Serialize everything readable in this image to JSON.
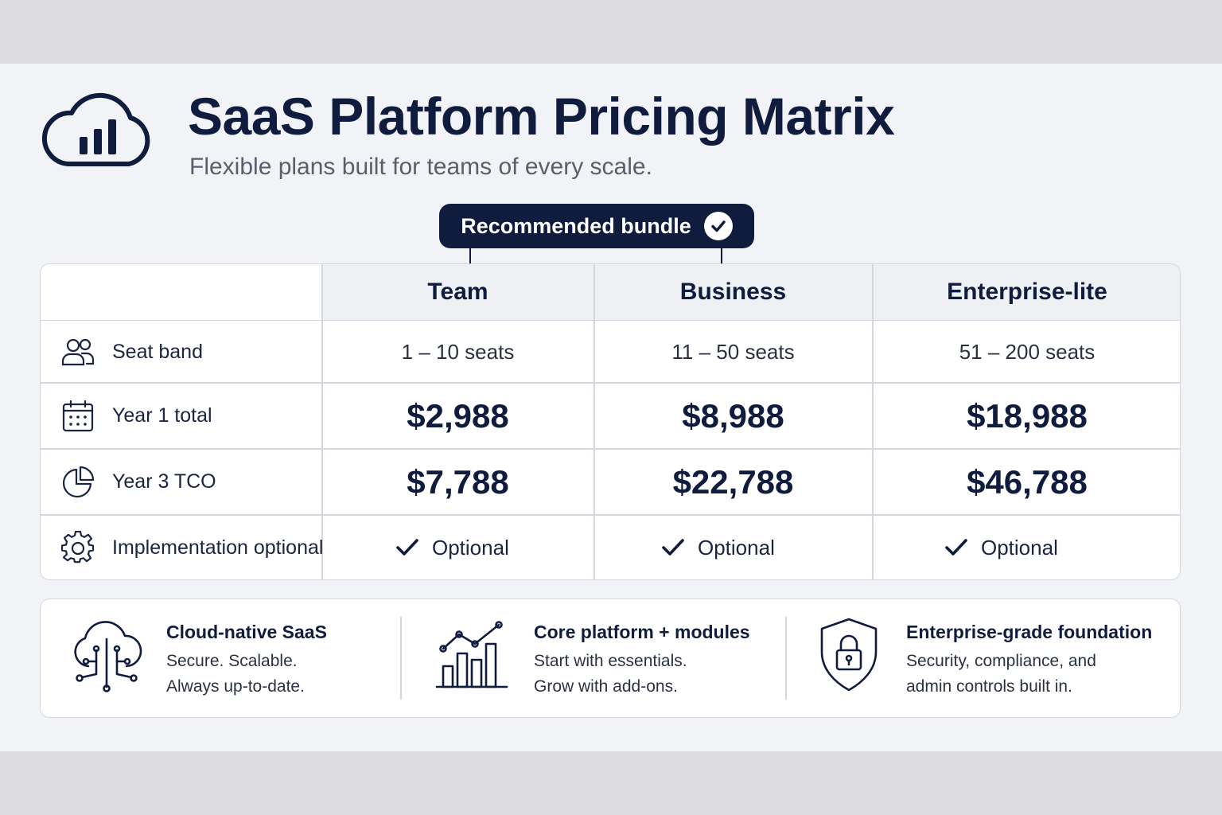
{
  "header": {
    "icon": "cloud-chart-icon",
    "title": "SaaS Platform Pricing Matrix",
    "subtitle": "Flexible plans built for teams of every scale."
  },
  "recommended": {
    "label": "Recommended bundle",
    "icon": "check-circle-icon"
  },
  "plans": [
    "Team",
    "Business",
    "Enterprise-lite"
  ],
  "rows": [
    {
      "label": "Seat band",
      "icon": "users-icon",
      "values": [
        "1 – 10 seats",
        "11 – 50 seats",
        "51 – 200 seats"
      ]
    },
    {
      "label": "Year 1 total",
      "icon": "calendar-icon",
      "values": [
        "$2,988",
        "$8,988",
        "$18,988"
      ]
    },
    {
      "label": "Year 3 TCO",
      "icon": "pie-chart-icon",
      "values": [
        "$7,788",
        "$22,788",
        "$46,788"
      ]
    },
    {
      "label": "Implementation optional",
      "icon": "gear-icon",
      "values": [
        "Optional",
        "Optional",
        "Optional"
      ]
    }
  ],
  "features": [
    {
      "icon": "cloud-circuit-icon",
      "title": "Cloud-native SaaS",
      "lines": [
        "Secure. Scalable.",
        "Always up-to-date."
      ]
    },
    {
      "icon": "growth-chart-icon",
      "title": "Core platform + modules",
      "lines": [
        "Start with essentials.",
        "Grow with add-ons."
      ]
    },
    {
      "icon": "shield-lock-icon",
      "title": "Enterprise-grade foundation",
      "lines": [
        "Security, compliance, and",
        "admin controls built in."
      ]
    }
  ],
  "colors": {
    "navy": "#101c3e",
    "border": "#d3d6dd",
    "header_fill": "#eef0f4",
    "background": "#f1f3f7"
  }
}
